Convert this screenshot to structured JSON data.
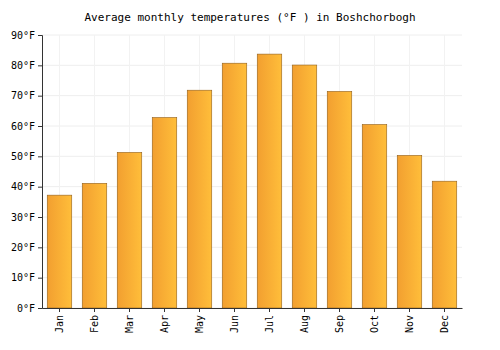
{
  "chart_data": {
    "type": "bar",
    "title": "Average monthly temperatures (°F ) in Boshchorbogh",
    "categories": [
      "Jan",
      "Feb",
      "Mar",
      "Apr",
      "May",
      "Jun",
      "Jul",
      "Aug",
      "Sep",
      "Oct",
      "Nov",
      "Dec"
    ],
    "values": [
      37.2,
      41.1,
      51.3,
      62.8,
      71.8,
      80.7,
      83.7,
      80.1,
      71.4,
      60.5,
      50.3,
      41.8
    ],
    "color": "#ffa833",
    "ylim": [
      0,
      90
    ],
    "yticks": [
      {
        "value": 0,
        "label": "0°F"
      },
      {
        "value": 10,
        "label": "10°F"
      },
      {
        "value": 20,
        "label": "20°F"
      },
      {
        "value": 30,
        "label": "30°F"
      },
      {
        "value": 40,
        "label": "40°F"
      },
      {
        "value": 50,
        "label": "50°F"
      },
      {
        "value": 60,
        "label": "60°F"
      },
      {
        "value": 70,
        "label": "70°F"
      },
      {
        "value": 80,
        "label": "80°F"
      },
      {
        "value": 90,
        "label": "90°F"
      }
    ],
    "grid": true
  }
}
